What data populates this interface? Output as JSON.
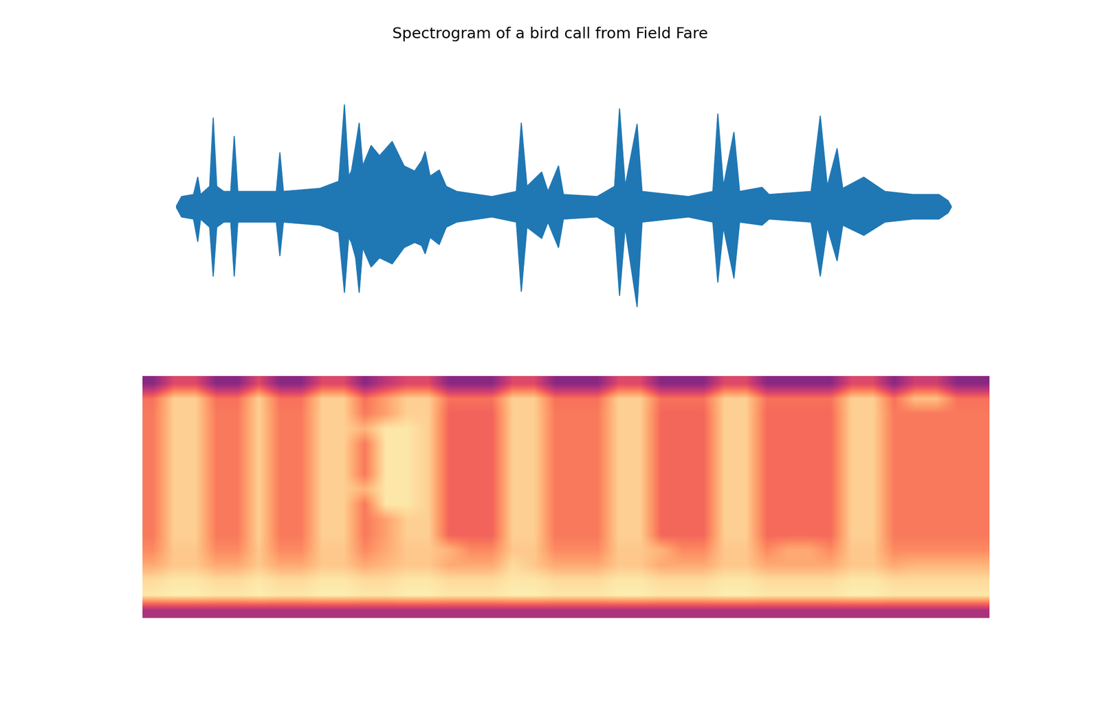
{
  "chart_data": [
    {
      "type": "envelope",
      "title": "Spectrogram of a bird call from Field Fare",
      "color": "#1f77b4",
      "tick_labels": false,
      "x": [
        0,
        8,
        25,
        31,
        35,
        48,
        53,
        58,
        68,
        78,
        83,
        88,
        120,
        143,
        148,
        153,
        205,
        232,
        240,
        246,
        250,
        256,
        261,
        266,
        278,
        290,
        308,
        325,
        340,
        350,
        355,
        362,
        375,
        385,
        400,
        450,
        485,
        492,
        500,
        521,
        530,
        545,
        552,
        600,
        625,
        632,
        640,
        657,
        664,
        730,
        765,
        772,
        780,
        795,
        803,
        835,
        845,
        905,
        918,
        928,
        942,
        950,
        980,
        1010,
        1050,
        1087,
        1100,
        1105
      ],
      "upper": [
        0.0,
        0.1,
        0.12,
        0.29,
        0.12,
        0.2,
        0.87,
        0.2,
        0.15,
        0.15,
        0.69,
        0.15,
        0.15,
        0.15,
        0.53,
        0.15,
        0.18,
        0.25,
        1.0,
        0.3,
        0.35,
        0.6,
        0.82,
        0.4,
        0.6,
        0.5,
        0.64,
        0.4,
        0.35,
        0.45,
        0.54,
        0.3,
        0.36,
        0.2,
        0.15,
        0.1,
        0.15,
        0.82,
        0.2,
        0.34,
        0.15,
        0.4,
        0.12,
        0.1,
        0.2,
        0.96,
        0.2,
        0.81,
        0.15,
        0.1,
        0.15,
        0.91,
        0.2,
        0.73,
        0.15,
        0.19,
        0.12,
        0.15,
        0.89,
        0.2,
        0.57,
        0.18,
        0.29,
        0.15,
        0.12,
        0.12,
        0.06,
        0.0
      ],
      "lower": [
        0.0,
        -0.1,
        -0.12,
        -0.34,
        -0.12,
        -0.2,
        -0.68,
        -0.2,
        -0.15,
        -0.15,
        -0.68,
        -0.15,
        -0.15,
        -0.15,
        -0.48,
        -0.15,
        -0.18,
        -0.25,
        -0.84,
        -0.3,
        -0.35,
        -0.5,
        -0.84,
        -0.4,
        -0.59,
        -0.5,
        -0.56,
        -0.4,
        -0.35,
        -0.38,
        -0.46,
        -0.3,
        -0.37,
        -0.2,
        -0.15,
        -0.1,
        -0.15,
        -0.83,
        -0.2,
        -0.31,
        -0.15,
        -0.4,
        -0.12,
        -0.1,
        -0.2,
        -0.87,
        -0.2,
        -0.98,
        -0.15,
        -0.1,
        -0.15,
        -0.74,
        -0.2,
        -0.7,
        -0.15,
        -0.18,
        -0.12,
        -0.15,
        -0.68,
        -0.2,
        -0.53,
        -0.18,
        -0.28,
        -0.15,
        -0.12,
        -0.12,
        -0.06,
        0.0
      ]
    },
    {
      "type": "heatmap",
      "tick_labels": false,
      "zlim": [
        -28,
        94
      ],
      "cells": [
        [
          20,
          45,
          45,
          20,
          20,
          45,
          20,
          20,
          45,
          45,
          20,
          35,
          45,
          45,
          20,
          20,
          20,
          45,
          45,
          20,
          20,
          20,
          45,
          45,
          20,
          20,
          20,
          45,
          45,
          20,
          20,
          20,
          20,
          45,
          45,
          20,
          40,
          40,
          20,
          20
        ],
        [
          58,
          82,
          82,
          58,
          58,
          82,
          58,
          58,
          82,
          82,
          58,
          70,
          82,
          82,
          58,
          58,
          58,
          82,
          82,
          58,
          58,
          58,
          82,
          82,
          58,
          58,
          58,
          82,
          82,
          58,
          58,
          58,
          58,
          82,
          82,
          58,
          78,
          78,
          58,
          58
        ],
        [
          60,
          82,
          82,
          60,
          60,
          82,
          60,
          60,
          82,
          82,
          60,
          70,
          82,
          82,
          54,
          54,
          54,
          82,
          82,
          60,
          60,
          60,
          82,
          82,
          55,
          55,
          55,
          82,
          82,
          56,
          56,
          56,
          56,
          82,
          82,
          60,
          60,
          60,
          60,
          60
        ],
        [
          60,
          82,
          82,
          60,
          60,
          82,
          60,
          60,
          82,
          82,
          75,
          88,
          88,
          82,
          54,
          54,
          54,
          82,
          82,
          60,
          60,
          60,
          82,
          82,
          55,
          55,
          55,
          82,
          82,
          56,
          56,
          56,
          56,
          82,
          82,
          60,
          60,
          60,
          60,
          60
        ],
        [
          60,
          82,
          82,
          60,
          60,
          82,
          60,
          60,
          82,
          82,
          60,
          88,
          88,
          82,
          54,
          54,
          54,
          82,
          82,
          60,
          60,
          60,
          82,
          82,
          55,
          55,
          55,
          82,
          82,
          56,
          56,
          56,
          56,
          82,
          82,
          60,
          60,
          60,
          60,
          60
        ],
        [
          60,
          82,
          82,
          60,
          60,
          82,
          60,
          60,
          82,
          82,
          60,
          88,
          88,
          82,
          54,
          54,
          54,
          82,
          82,
          60,
          60,
          60,
          82,
          82,
          55,
          55,
          55,
          82,
          82,
          56,
          56,
          56,
          56,
          82,
          82,
          60,
          60,
          60,
          60,
          60
        ],
        [
          60,
          82,
          82,
          60,
          60,
          82,
          60,
          60,
          82,
          82,
          60,
          88,
          88,
          82,
          54,
          54,
          54,
          82,
          82,
          60,
          60,
          60,
          82,
          82,
          55,
          55,
          55,
          82,
          82,
          56,
          56,
          56,
          56,
          82,
          82,
          60,
          60,
          60,
          60,
          60
        ],
        [
          60,
          82,
          82,
          60,
          60,
          82,
          60,
          60,
          82,
          82,
          75,
          88,
          88,
          82,
          54,
          54,
          54,
          82,
          82,
          60,
          60,
          60,
          82,
          82,
          55,
          55,
          55,
          82,
          82,
          56,
          56,
          56,
          56,
          82,
          82,
          60,
          60,
          60,
          60,
          60
        ],
        [
          60,
          82,
          82,
          60,
          60,
          82,
          60,
          60,
          82,
          82,
          60,
          88,
          88,
          82,
          54,
          54,
          54,
          82,
          82,
          60,
          60,
          60,
          82,
          82,
          55,
          55,
          55,
          82,
          82,
          56,
          56,
          56,
          56,
          82,
          82,
          60,
          60,
          60,
          60,
          60
        ],
        [
          60,
          82,
          82,
          60,
          60,
          82,
          60,
          60,
          82,
          82,
          60,
          70,
          82,
          82,
          54,
          54,
          54,
          82,
          82,
          60,
          60,
          60,
          82,
          82,
          55,
          55,
          55,
          82,
          82,
          56,
          56,
          56,
          56,
          82,
          82,
          60,
          60,
          60,
          60,
          60
        ],
        [
          60,
          82,
          82,
          60,
          60,
          82,
          60,
          60,
          82,
          82,
          60,
          70,
          82,
          82,
          54,
          54,
          54,
          82,
          82,
          60,
          60,
          60,
          82,
          82,
          55,
          55,
          55,
          82,
          82,
          56,
          56,
          56,
          56,
          82,
          82,
          60,
          60,
          60,
          60,
          60
        ],
        [
          64,
          80,
          80,
          64,
          64,
          80,
          64,
          64,
          80,
          80,
          64,
          72,
          80,
          80,
          75,
          64,
          64,
          80,
          80,
          64,
          64,
          64,
          80,
          80,
          75,
          64,
          64,
          80,
          80,
          64,
          72,
          72,
          64,
          80,
          80,
          64,
          64,
          64,
          64,
          64
        ],
        [
          72,
          80,
          80,
          72,
          72,
          80,
          72,
          72,
          80,
          80,
          72,
          76,
          80,
          80,
          72,
          72,
          72,
          85,
          80,
          72,
          72,
          72,
          80,
          80,
          72,
          72,
          72,
          80,
          80,
          72,
          72,
          72,
          72,
          80,
          80,
          72,
          75,
          75,
          75,
          75
        ],
        [
          85,
          88,
          88,
          85,
          85,
          88,
          85,
          85,
          88,
          88,
          85,
          85,
          88,
          88,
          85,
          85,
          85,
          88,
          88,
          85,
          85,
          85,
          88,
          88,
          85,
          85,
          85,
          88,
          88,
          85,
          85,
          85,
          85,
          88,
          88,
          85,
          85,
          85,
          85,
          85
        ],
        [
          88,
          90,
          90,
          88,
          88,
          90,
          88,
          88,
          90,
          90,
          88,
          88,
          90,
          90,
          88,
          88,
          88,
          90,
          90,
          88,
          88,
          88,
          90,
          90,
          88,
          88,
          88,
          90,
          90,
          88,
          88,
          88,
          88,
          90,
          90,
          88,
          88,
          88,
          88,
          88
        ],
        [
          30,
          30,
          30,
          30,
          30,
          30,
          30,
          30,
          30,
          30,
          30,
          30,
          30,
          30,
          30,
          30,
          30,
          30,
          30,
          30,
          30,
          30,
          30,
          30,
          30,
          30,
          30,
          30,
          30,
          30,
          30,
          30,
          30,
          30,
          30,
          30,
          30,
          30,
          30,
          30
        ]
      ]
    }
  ]
}
